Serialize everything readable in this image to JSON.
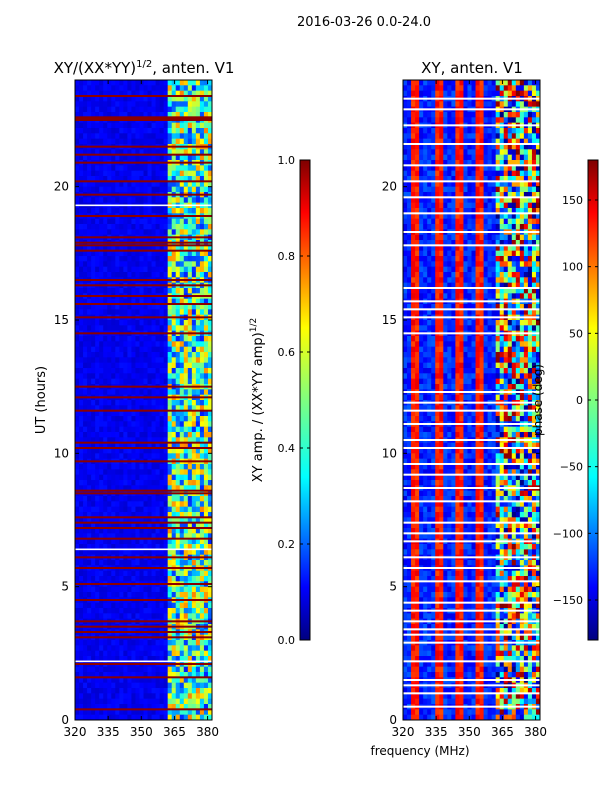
{
  "figure_title": "2016-03-26 0.0-24.0",
  "colors": {
    "jet": [
      "#00007f",
      "#0000ff",
      "#007fff",
      "#00ffff",
      "#7fff7f",
      "#ffff00",
      "#ff7f00",
      "#ff0000",
      "#7f0000"
    ],
    "flag_color": "#8b0000",
    "gap_color": "#ffffff"
  },
  "chart_data": [
    {
      "type": "heatmap",
      "title_main": "XY/(XX*YY)",
      "title_sup": "1/2",
      "title_tail": ", anten. V1",
      "xlabel": "",
      "ylabel": "UT (hours)",
      "x_ticks": [
        "320",
        "335",
        "350",
        "365",
        "380"
      ],
      "x_tick_values": [
        320,
        335,
        350,
        365,
        380
      ],
      "y_ticks": [
        "0",
        "5",
        "10",
        "15",
        "20"
      ],
      "y_tick_values": [
        0,
        5,
        10,
        15,
        20
      ],
      "xlim": [
        320,
        382
      ],
      "ylim": [
        0,
        24
      ],
      "value_range": [
        0.0,
        1.0
      ],
      "flagged_hours": [
        0.4,
        1.6,
        2.1,
        3.1,
        3.3,
        3.5,
        3.7,
        4.5,
        5.1,
        5.7,
        6.1,
        6.8,
        7.2,
        7.4,
        7.6,
        8.5,
        8.6,
        9.7,
        10.2,
        10.4,
        11.6,
        12.1,
        12.5,
        14.5,
        15.1,
        15.6,
        15.9,
        16.3,
        16.5,
        17.6,
        17.8,
        17.9,
        18.1,
        18.9,
        19.7,
        20.2,
        20.9,
        21.2,
        21.5,
        22.5,
        22.55,
        22.6,
        23.4
      ],
      "gap_hours": [
        2.2,
        6.4,
        19.3
      ],
      "colorbar": {
        "label_main": "XY amp. / (XX*YY amp)",
        "label_sup": "1/2",
        "ticks": [
          "0.0",
          "0.2",
          "0.4",
          "0.6",
          "0.8",
          "1.0"
        ],
        "tick_values": [
          0.0,
          0.2,
          0.4,
          0.6,
          0.8,
          1.0
        ],
        "range": [
          0.0,
          1.0
        ]
      }
    },
    {
      "type": "heatmap",
      "title_main": "XY, anten. V1",
      "xlabel": "frequency (MHz)",
      "ylabel": "",
      "x_ticks": [
        "320",
        "335",
        "350",
        "365",
        "380"
      ],
      "x_tick_values": [
        320,
        335,
        350,
        365,
        380
      ],
      "y_ticks": [
        "0",
        "5",
        "10",
        "15",
        "20"
      ],
      "y_tick_values": [
        0,
        5,
        10,
        15,
        20
      ],
      "xlim": [
        320,
        382
      ],
      "ylim": [
        0,
        24
      ],
      "value_range": [
        -180,
        180
      ],
      "phase_bands_MHz": [
        326,
        336,
        345,
        355
      ],
      "flagged_hours": [
        0.5,
        1.0,
        1.3,
        1.5,
        2.2,
        2.9,
        3.2,
        3.4,
        3.7,
        4.1,
        4.4,
        5.2,
        5.7,
        6.1,
        6.7,
        7.0,
        7.4,
        8.2,
        8.7,
        9.2,
        9.6,
        10.2,
        10.5,
        11.1,
        11.6,
        11.9,
        12.3,
        14.5,
        15.1,
        15.4,
        15.7,
        16.2,
        17.8,
        18.3,
        19.0,
        19.6,
        20.2,
        20.8,
        21.6,
        22.3,
        22.9,
        23.3
      ],
      "colorbar": {
        "label_main": "phase (deg)",
        "ticks": [
          "−150",
          "−100",
          "−50",
          "0",
          "50",
          "100",
          "150"
        ],
        "tick_values": [
          -150,
          -100,
          -50,
          0,
          50,
          100,
          150
        ],
        "range": [
          -180,
          180
        ]
      }
    }
  ]
}
